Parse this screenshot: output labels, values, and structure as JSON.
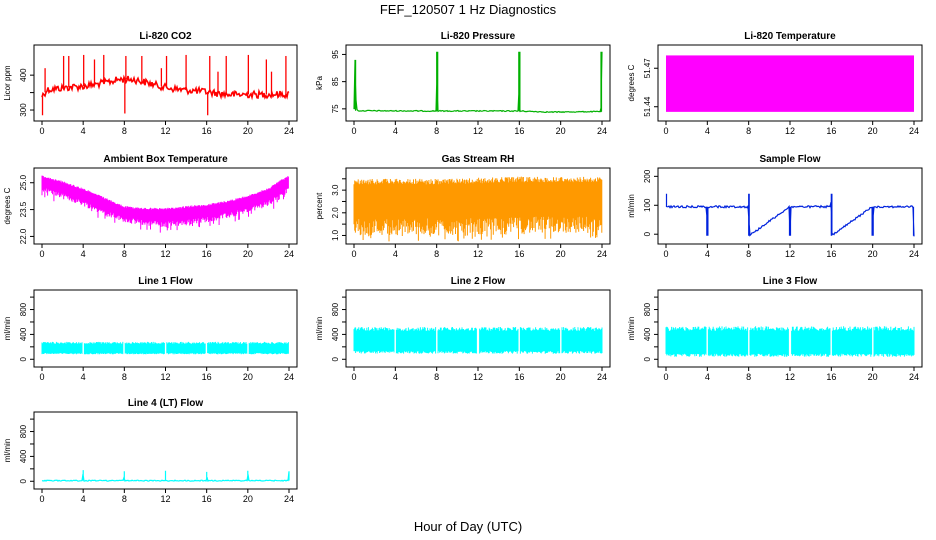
{
  "figure": {
    "title": "FEF_120507  1 Hz Diagnostics",
    "xlabel": "Hour of Day (UTC)"
  },
  "chart_data": [
    {
      "type": "line",
      "title": "Li-820 CO2",
      "ylabel": "Licor ppm",
      "color": "#ff0000",
      "xlim": [
        0,
        24
      ],
      "ylim": [
        280,
        475
      ],
      "xticks": [
        0,
        4,
        8,
        12,
        16,
        20,
        24
      ],
      "yticks": [
        300,
        350,
        400
      ],
      "ytick_labels": [
        "300",
        "",
        "400"
      ],
      "series": [
        {
          "x": [
            0,
            0.5,
            1,
            2,
            3,
            4,
            5,
            6,
            7,
            7.5,
            8,
            9,
            10,
            11,
            12,
            13,
            14,
            15,
            16,
            17,
            18,
            19,
            20,
            21,
            22,
            23,
            24
          ],
          "y": [
            340,
            358,
            360,
            363,
            366,
            368,
            372,
            378,
            384,
            388,
            388,
            387,
            380,
            372,
            365,
            360,
            357,
            355,
            352,
            348,
            345,
            344,
            345,
            344,
            345,
            345,
            345
          ]
        }
      ],
      "spikes": [
        {
          "x": 0.05,
          "y": 285
        },
        {
          "x": 0.3,
          "y": 420
        },
        {
          "x": 2.1,
          "y": 455
        },
        {
          "x": 2.6,
          "y": 455
        },
        {
          "x": 4.05,
          "y": 458
        },
        {
          "x": 5.1,
          "y": 445
        },
        {
          "x": 6.0,
          "y": 458
        },
        {
          "x": 8.05,
          "y": 290
        },
        {
          "x": 8.15,
          "y": 455
        },
        {
          "x": 9.7,
          "y": 455
        },
        {
          "x": 11.6,
          "y": 420
        },
        {
          "x": 12.1,
          "y": 455
        },
        {
          "x": 14.0,
          "y": 458
        },
        {
          "x": 16.1,
          "y": 285
        },
        {
          "x": 16.3,
          "y": 455
        },
        {
          "x": 17.1,
          "y": 410
        },
        {
          "x": 17.9,
          "y": 455
        },
        {
          "x": 20.05,
          "y": 458
        },
        {
          "x": 21.8,
          "y": 445
        },
        {
          "x": 22.3,
          "y": 410
        },
        {
          "x": 23.7,
          "y": 455
        }
      ]
    },
    {
      "type": "line",
      "title": "Li-820 Pressure",
      "ylabel": "kPa",
      "color": "#00b000",
      "xlim": [
        0,
        24
      ],
      "ylim": [
        72,
        97
      ],
      "xticks": [
        0,
        4,
        8,
        12,
        16,
        20,
        24
      ],
      "yticks": [
        75,
        85,
        95
      ],
      "series": [
        {
          "x": [
            0,
            0.1,
            0.15,
            0.3,
            8.0,
            8.05,
            8.1,
            15.95,
            16.0,
            16.05,
            19.0,
            23.9,
            23.95,
            24
          ],
          "y": [
            74.8,
            93,
            80,
            74.3,
            74.2,
            96,
            74.2,
            74.2,
            96,
            74.2,
            73.8,
            74,
            96,
            96
          ]
        }
      ],
      "spikes": []
    },
    {
      "type": "area",
      "title": "Li-820 Temperature",
      "ylabel": "degrees C",
      "color": "#ff00ff",
      "xlim": [
        0,
        24
      ],
      "ylim": [
        51.432,
        51.485
      ],
      "xticks": [
        0,
        4,
        8,
        12,
        16,
        20,
        24
      ],
      "yticks": [
        51.44,
        51.47
      ],
      "band": {
        "x0": 0,
        "x1": 24,
        "y0": 51.436,
        "y1": 51.48
      }
    },
    {
      "type": "line",
      "title": "Ambient Box Temperature",
      "ylabel": "degrees C",
      "color": "#ff00ff",
      "xlim": [
        0,
        24
      ],
      "ylim": [
        21.8,
        25.6
      ],
      "xticks": [
        0,
        4,
        8,
        12,
        16,
        20,
        24
      ],
      "yticks": [
        22.0,
        23.5,
        25.0
      ],
      "ytick_labels": [
        "22.0",
        "23.5",
        "25.0"
      ],
      "series": [
        {
          "name": "upper",
          "x": [
            0,
            2,
            4,
            6,
            8,
            10,
            12,
            14,
            16,
            18,
            20,
            22,
            23,
            24
          ],
          "y": [
            25.4,
            25.1,
            24.7,
            24.2,
            23.7,
            23.6,
            23.6,
            23.7,
            23.8,
            24.0,
            24.3,
            24.7,
            25.1,
            25.4
          ]
        },
        {
          "name": "lower",
          "x": [
            0,
            2,
            4,
            6,
            8,
            10,
            12,
            14,
            16,
            18,
            20,
            22,
            23,
            24
          ],
          "y": [
            24.5,
            24.1,
            23.7,
            23.2,
            22.8,
            22.6,
            22.5,
            22.6,
            22.8,
            23.0,
            23.3,
            23.7,
            24.0,
            24.5
          ]
        }
      ]
    },
    {
      "type": "line",
      "title": "Gas Stream RH",
      "ylabel": "percent",
      "color": "#ff9900",
      "xlim": [
        0,
        24
      ],
      "ylim": [
        0.8,
        3.8
      ],
      "xticks": [
        0,
        4,
        8,
        12,
        16,
        20,
        24
      ],
      "yticks": [
        1.0,
        1.5,
        2.0,
        2.5,
        3.0,
        3.5
      ],
      "ytick_labels": [
        "1.0",
        "",
        "2.0",
        "",
        "3.0",
        ""
      ],
      "series": [
        {
          "name": "upper",
          "x": [
            0,
            4,
            8,
            12,
            16,
            20,
            24
          ],
          "y": [
            3.5,
            3.5,
            3.5,
            3.55,
            3.6,
            3.6,
            3.6
          ]
        },
        {
          "name": "lower",
          "x": [
            0,
            4,
            8,
            12,
            16,
            20,
            24
          ],
          "y": [
            1.0,
            1.0,
            1.0,
            1.0,
            1.05,
            1.1,
            1.1
          ]
        }
      ]
    },
    {
      "type": "line",
      "title": "Sample Flow",
      "ylabel": "ml/min",
      "color": "#0022dd",
      "xlim": [
        0,
        24
      ],
      "ylim": [
        -20,
        215
      ],
      "xticks": [
        0,
        4,
        8,
        12,
        16,
        20,
        24
      ],
      "yticks": [
        0,
        100,
        200
      ],
      "series": [
        {
          "x": [
            0,
            0.05,
            0.1,
            3.95,
            4.0,
            4.05,
            7.95,
            8.0,
            8.05,
            11.95,
            12.0,
            12.05,
            15.95,
            16.0,
            16.05,
            19.95,
            20.0,
            20.05,
            23.95,
            24
          ],
          "y": [
            95,
            140,
            95,
            95,
            -5,
            95,
            95,
            140,
            -5,
            95,
            -5,
            95,
            95,
            140,
            -5,
            95,
            -5,
            95,
            95,
            -5
          ]
        }
      ],
      "spikes": []
    },
    {
      "type": "line",
      "title": "Line 1 Flow",
      "ylabel": "ml/min",
      "color": "#00ffff",
      "xlim": [
        0,
        24
      ],
      "ylim": [
        -60,
        1050
      ],
      "xticks": [
        0,
        4,
        8,
        12,
        16,
        20,
        24
      ],
      "yticks": [
        0,
        200,
        400,
        600,
        800,
        1000
      ],
      "ytick_labels": [
        "0",
        "",
        "400",
        "",
        "800",
        ""
      ],
      "band": {
        "x0": 0,
        "x1": 24,
        "y0": 80,
        "y1": 280
      },
      "gaps": [
        4,
        8,
        12,
        16,
        20
      ]
    },
    {
      "type": "line",
      "title": "Line 2 Flow",
      "ylabel": "ml/min",
      "color": "#00ffff",
      "xlim": [
        0,
        24
      ],
      "ylim": [
        -60,
        1050
      ],
      "xticks": [
        0,
        4,
        8,
        12,
        16,
        20,
        24
      ],
      "yticks": [
        0,
        200,
        400,
        600,
        800,
        1000
      ],
      "ytick_labels": [
        "0",
        "",
        "400",
        "",
        "800",
        ""
      ],
      "band": {
        "x0": 0,
        "x1": 24,
        "y0": 90,
        "y1": 520
      },
      "gaps": [
        4,
        8,
        12,
        16,
        20
      ]
    },
    {
      "type": "line",
      "title": "Line 3 Flow",
      "ylabel": "ml/min",
      "color": "#00ffff",
      "xlim": [
        0,
        24
      ],
      "ylim": [
        -60,
        1050
      ],
      "xticks": [
        0,
        4,
        8,
        12,
        16,
        20,
        24
      ],
      "yticks": [
        0,
        200,
        400,
        600,
        800,
        1000
      ],
      "ytick_labels": [
        "0",
        "",
        "400",
        "",
        "800",
        ""
      ],
      "band": {
        "x0": 0,
        "x1": 24,
        "y0": 40,
        "y1": 530
      },
      "gaps": [
        4,
        8,
        12,
        16,
        20
      ]
    },
    {
      "type": "line",
      "title": "Line 4 (LT) Flow",
      "ylabel": "ml/min",
      "color": "#00ffff",
      "xlim": [
        0,
        24
      ],
      "ylim": [
        -60,
        1050
      ],
      "xticks": [
        0,
        4,
        8,
        12,
        16,
        20,
        24
      ],
      "yticks": [
        0,
        200,
        400,
        600,
        800,
        1000
      ],
      "ytick_labels": [
        "0",
        "",
        "400",
        "",
        "800",
        ""
      ],
      "series": [
        {
          "x": [
            0,
            3.95,
            4.0,
            4.05,
            7.95,
            8.0,
            8.05,
            11.95,
            12.0,
            12.05,
            15.95,
            16.0,
            16.05,
            19.95,
            20.0,
            20.05,
            23.95,
            24.0,
            24
          ],
          "y": [
            10,
            10,
            180,
            10,
            10,
            160,
            10,
            10,
            170,
            10,
            10,
            150,
            10,
            10,
            170,
            10,
            10,
            160,
            10
          ]
        }
      ],
      "spikes": []
    }
  ]
}
